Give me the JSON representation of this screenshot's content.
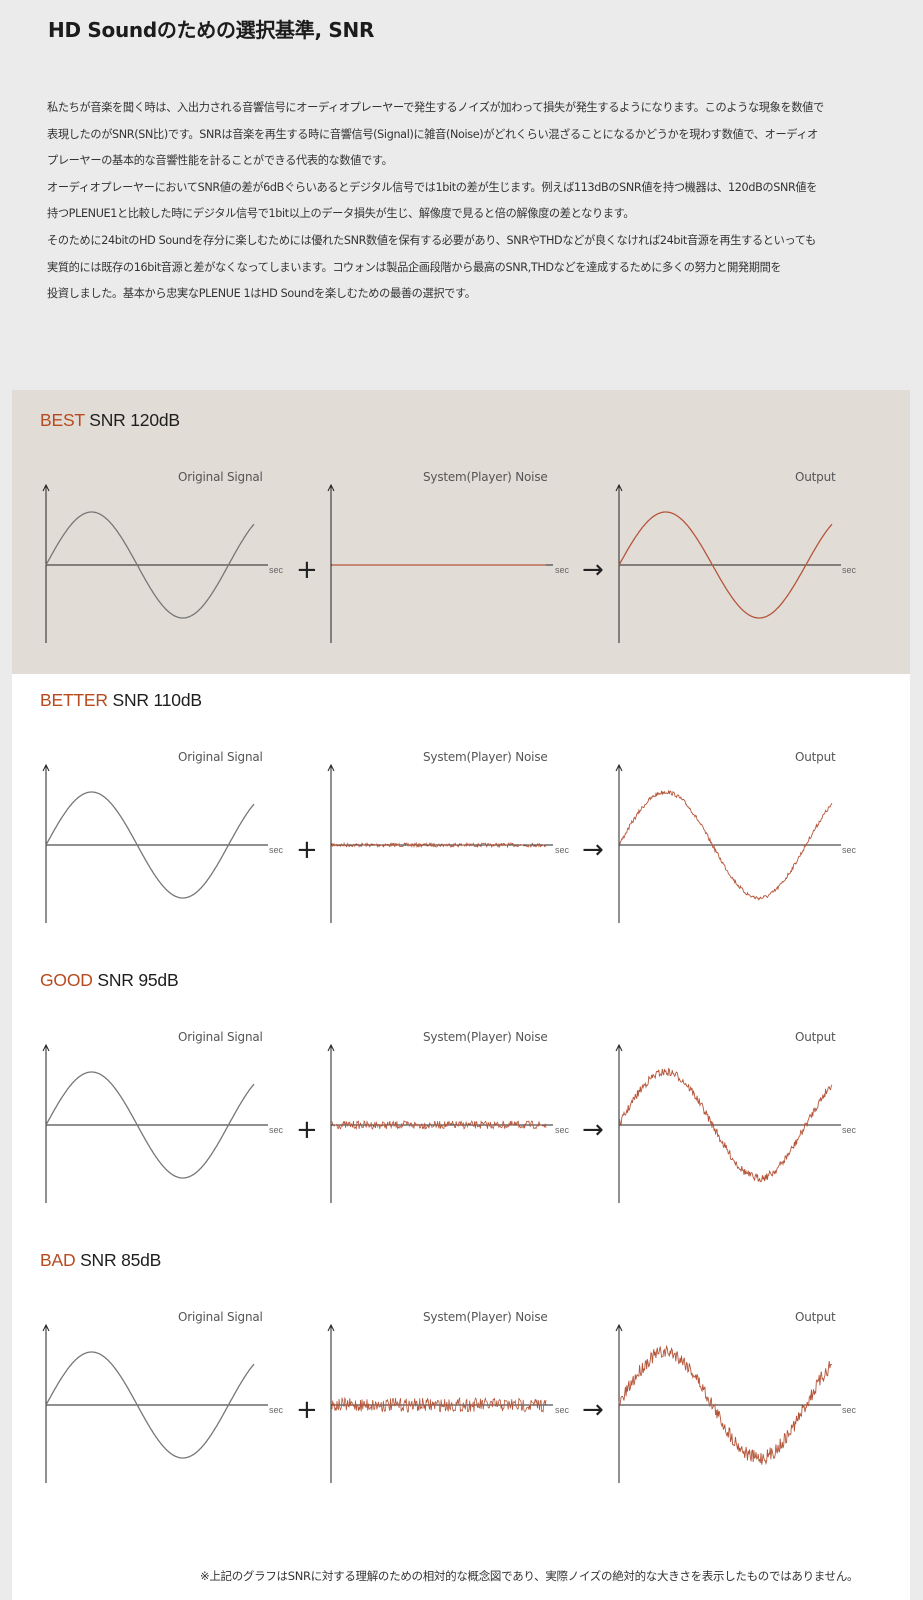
{
  "title": "HD Soundのための選択基準, SNR",
  "intro": [
    "私たちが音楽を聞く時は、入出力される音響信号にオーディオプレーヤーで発生するノイズが加わって損失が発生するようになります。このような現象を数値で",
    "表現したのがSNR(SN比)です。SNRは音楽を再生する時に音響信号(Signal)に雑音(Noise)がどれくらい混ざることになるかどうかを現わす数値で、オーディオ",
    "プレーヤーの基本的な音響性能を計ることができる代表的な数値です。",
    "オーディオプレーヤーにおいてSNR値の差が6dBぐらいあるとデジタル信号では1bitの差が生じます。例えば113dBのSNR値を持つ機器は、120dBのSNR値を",
    "持つPLENUE1と比較した時にデジタル信号で1bit以上のデータ損失が生じ、解像度で見ると倍の解像度の差となります。",
    "そのために24bitのHD Soundを存分に楽しむためには優れたSNR数値を保有する必要があり、SNRやTHDなどが良くなければ24bit音源を再生するといっても",
    "実質的には既存の16bit音源と差がなくなってしまいます。コウォンは製品企画段階から最高のSNR,THDなどを達成するために多くの努力と開発期間を",
    "投資しました。基本から忠実なPLENUE 1はHD Soundを楽しむための最善の選択です。"
  ],
  "graph_labels": {
    "original": "Original Signal",
    "noise": "System(Player) Noise",
    "output": "Output",
    "axis": "sec",
    "plus": "+",
    "arrow": "→"
  },
  "sections": [
    {
      "grade": "BEST",
      "snr": "SNR 120dB",
      "noise_amplitude": 0
    },
    {
      "grade": "BETTER",
      "snr": "SNR 110dB",
      "noise_amplitude": 2
    },
    {
      "grade": "GOOD",
      "snr": "SNR 95dB",
      "noise_amplitude": 4
    },
    {
      "grade": "BAD",
      "snr": "SNR 85dB",
      "noise_amplitude": 7
    }
  ],
  "footnote": "※上記のグラフはSNRに対する理解のための相対的な概念図であり、実際ノイズの絶対的な大きさを表示したものではありません。",
  "colors": {
    "accent": "#b84a1f",
    "signal_line": "#777777",
    "noise_line": "#b5563a",
    "best_band": "#e2dcd7"
  }
}
